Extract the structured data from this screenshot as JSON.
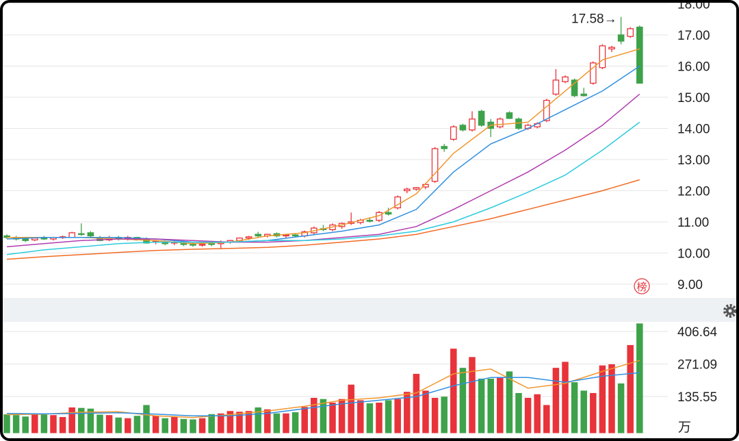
{
  "chart_data": {
    "type": "candlestick",
    "annotation": "17.58→",
    "badge": "榜",
    "volume_unit": "万",
    "up_color": "#e8333a",
    "down_color": "#3ea24a",
    "ylim": [
      8.56,
      18.12
    ],
    "yticks": [
      {
        "value": 9,
        "label": "9.00"
      },
      {
        "value": 10,
        "label": "10.00"
      },
      {
        "value": 11,
        "label": "11.00"
      },
      {
        "value": 12,
        "label": "12.00"
      },
      {
        "value": 13,
        "label": "13.00"
      },
      {
        "value": 14,
        "label": "14.00"
      },
      {
        "value": 15,
        "label": "15.00"
      },
      {
        "value": 16,
        "label": "16.00"
      },
      {
        "value": 17,
        "label": "17.00"
      },
      {
        "value": 18,
        "label": "18.00"
      }
    ],
    "open": [
      10.55,
      10.5,
      10.45,
      10.42,
      10.48,
      10.45,
      10.5,
      10.5,
      10.62,
      10.65,
      10.5,
      10.42,
      10.5,
      10.48,
      10.5,
      10.45,
      10.35,
      10.35,
      10.32,
      10.3,
      10.28,
      10.25,
      10.3,
      10.3,
      10.35,
      10.4,
      10.48,
      10.6,
      10.55,
      10.62,
      10.55,
      10.58,
      10.55,
      10.65,
      10.78,
      10.75,
      10.85,
      10.95,
      10.98,
      11.05,
      11.05,
      11.3,
      11.45,
      12.0,
      12.05,
      12.12,
      12.3,
      13.42,
      13.65,
      14.1,
      13.95,
      14.55,
      14.2,
      14.05,
      14.5,
      14.3,
      14.0,
      14.05,
      14.25,
      15.1,
      15.5,
      15.55,
      15.1,
      15.45,
      15.95,
      16.55,
      17.0,
      16.95,
      17.25
    ],
    "high": [
      10.6,
      10.55,
      10.5,
      10.5,
      10.55,
      10.52,
      10.56,
      10.68,
      10.95,
      10.7,
      10.55,
      10.55,
      10.55,
      10.55,
      10.52,
      10.5,
      10.42,
      10.4,
      10.38,
      10.38,
      10.33,
      10.32,
      10.35,
      10.4,
      10.42,
      10.5,
      10.55,
      10.68,
      10.62,
      10.66,
      10.6,
      10.62,
      10.72,
      10.85,
      10.9,
      10.95,
      10.98,
      11.3,
      11.1,
      11.15,
      11.35,
      11.45,
      11.85,
      12.1,
      12.12,
      12.25,
      13.4,
      13.5,
      14.1,
      14.15,
      14.55,
      14.6,
      14.3,
      14.35,
      14.55,
      14.35,
      14.15,
      14.2,
      14.95,
      15.9,
      15.7,
      15.6,
      15.3,
      16.15,
      16.7,
      16.65,
      17.58,
      17.25,
      17.3
    ],
    "low": [
      10.45,
      10.4,
      10.35,
      10.38,
      10.42,
      10.4,
      10.45,
      10.48,
      10.55,
      10.5,
      10.38,
      10.38,
      10.4,
      10.4,
      10.4,
      10.3,
      10.28,
      10.25,
      10.25,
      10.22,
      10.2,
      10.2,
      10.22,
      10.12,
      10.3,
      10.36,
      10.42,
      10.5,
      10.5,
      10.5,
      10.48,
      10.5,
      10.5,
      10.6,
      10.7,
      10.7,
      10.78,
      10.9,
      10.92,
      10.98,
      11.0,
      11.2,
      11.4,
      11.92,
      12.0,
      12.05,
      12.25,
      13.25,
      13.6,
      13.9,
      13.9,
      14.05,
      13.72,
      14.0,
      14.3,
      13.95,
      13.95,
      14.0,
      14.2,
      15.05,
      15.45,
      15.0,
      15.02,
      15.4,
      15.9,
      16.45,
      16.7,
      16.9,
      15.45
    ],
    "close": [
      10.5,
      10.45,
      10.4,
      10.48,
      10.45,
      10.5,
      10.52,
      10.65,
      10.6,
      10.55,
      10.4,
      10.5,
      10.45,
      10.5,
      10.42,
      10.32,
      10.38,
      10.3,
      10.35,
      10.28,
      10.25,
      10.28,
      10.28,
      10.35,
      10.4,
      10.48,
      10.52,
      10.55,
      10.6,
      10.55,
      10.58,
      10.55,
      10.68,
      10.8,
      10.75,
      10.9,
      10.95,
      11.0,
      11.05,
      11.02,
      11.3,
      11.25,
      11.8,
      12.05,
      12.1,
      12.2,
      13.35,
      13.35,
      14.05,
      13.95,
      14.3,
      14.1,
      14.0,
      14.3,
      14.32,
      14.0,
      14.1,
      14.15,
      14.9,
      15.55,
      15.65,
      15.05,
      15.05,
      16.1,
      16.65,
      16.6,
      16.8,
      17.2,
      15.45
    ],
    "ma_x": [
      0,
      4,
      8,
      12,
      16,
      20,
      24,
      28,
      32,
      36,
      40,
      44,
      48,
      52,
      56,
      60,
      64,
      68
    ],
    "ma_series": [
      {
        "color": "#f0962e",
        "values": [
          10.5,
          10.5,
          10.5,
          10.45,
          10.4,
          10.3,
          10.35,
          10.55,
          10.65,
          10.9,
          11.2,
          11.9,
          13.2,
          14.1,
          14.2,
          15.2,
          16.2,
          16.55
        ]
      },
      {
        "color": "#2f8fe0",
        "values": [
          10.45,
          10.5,
          10.5,
          10.5,
          10.45,
          10.35,
          10.35,
          10.4,
          10.55,
          10.7,
          10.9,
          11.4,
          12.6,
          13.5,
          14.0,
          14.6,
          15.2,
          16.0
        ]
      },
      {
        "color": "#b03cb0",
        "values": [
          10.2,
          10.3,
          10.4,
          10.45,
          10.45,
          10.4,
          10.35,
          10.35,
          10.4,
          10.5,
          10.6,
          10.85,
          11.4,
          12.0,
          12.6,
          13.3,
          14.1,
          15.1
        ]
      },
      {
        "color": "#2ccbdc",
        "values": [
          9.95,
          10.1,
          10.2,
          10.3,
          10.35,
          10.35,
          10.35,
          10.4,
          10.4,
          10.45,
          10.55,
          10.7,
          11.0,
          11.45,
          11.95,
          12.5,
          13.3,
          14.2
        ]
      },
      {
        "color": "#f26a24",
        "values": [
          9.8,
          9.88,
          9.95,
          10.02,
          10.08,
          10.12,
          10.15,
          10.18,
          10.25,
          10.35,
          10.45,
          10.6,
          10.85,
          11.1,
          11.4,
          11.7,
          12.0,
          12.35
        ]
      }
    ],
    "volume": [
      61,
      58,
      52,
      62,
      60,
      58,
      50,
      90,
      88,
      85,
      60,
      58,
      48,
      45,
      55,
      100,
      55,
      45,
      50,
      42,
      40,
      45,
      62,
      65,
      75,
      72,
      75,
      90,
      82,
      65,
      65,
      70,
      92,
      130,
      125,
      110,
      125,
      185,
      120,
      107,
      110,
      120,
      125,
      155,
      230,
      160,
      130,
      135,
      335,
      255,
      300,
      210,
      210,
      215,
      240,
      150,
      130,
      145,
      100,
      255,
      280,
      195,
      160,
      150,
      265,
      270,
      190,
      350,
      440
    ],
    "vlim": [
      0,
      441
    ],
    "vticks": [
      135.55,
      271.09,
      406.64
    ],
    "vma_series": [
      {
        "color": "#f0962e",
        "values": [
          60,
          62,
          70,
          72,
          55,
          48,
          60,
          75,
          95,
          120,
          130,
          150,
          230,
          250,
          170,
          190,
          240,
          286
        ]
      },
      {
        "color": "#2f8fe0",
        "values": [
          65,
          63,
          65,
          68,
          62,
          55,
          55,
          65,
          85,
          105,
          120,
          135,
          180,
          215,
          215,
          195,
          220,
          235
        ]
      }
    ]
  }
}
